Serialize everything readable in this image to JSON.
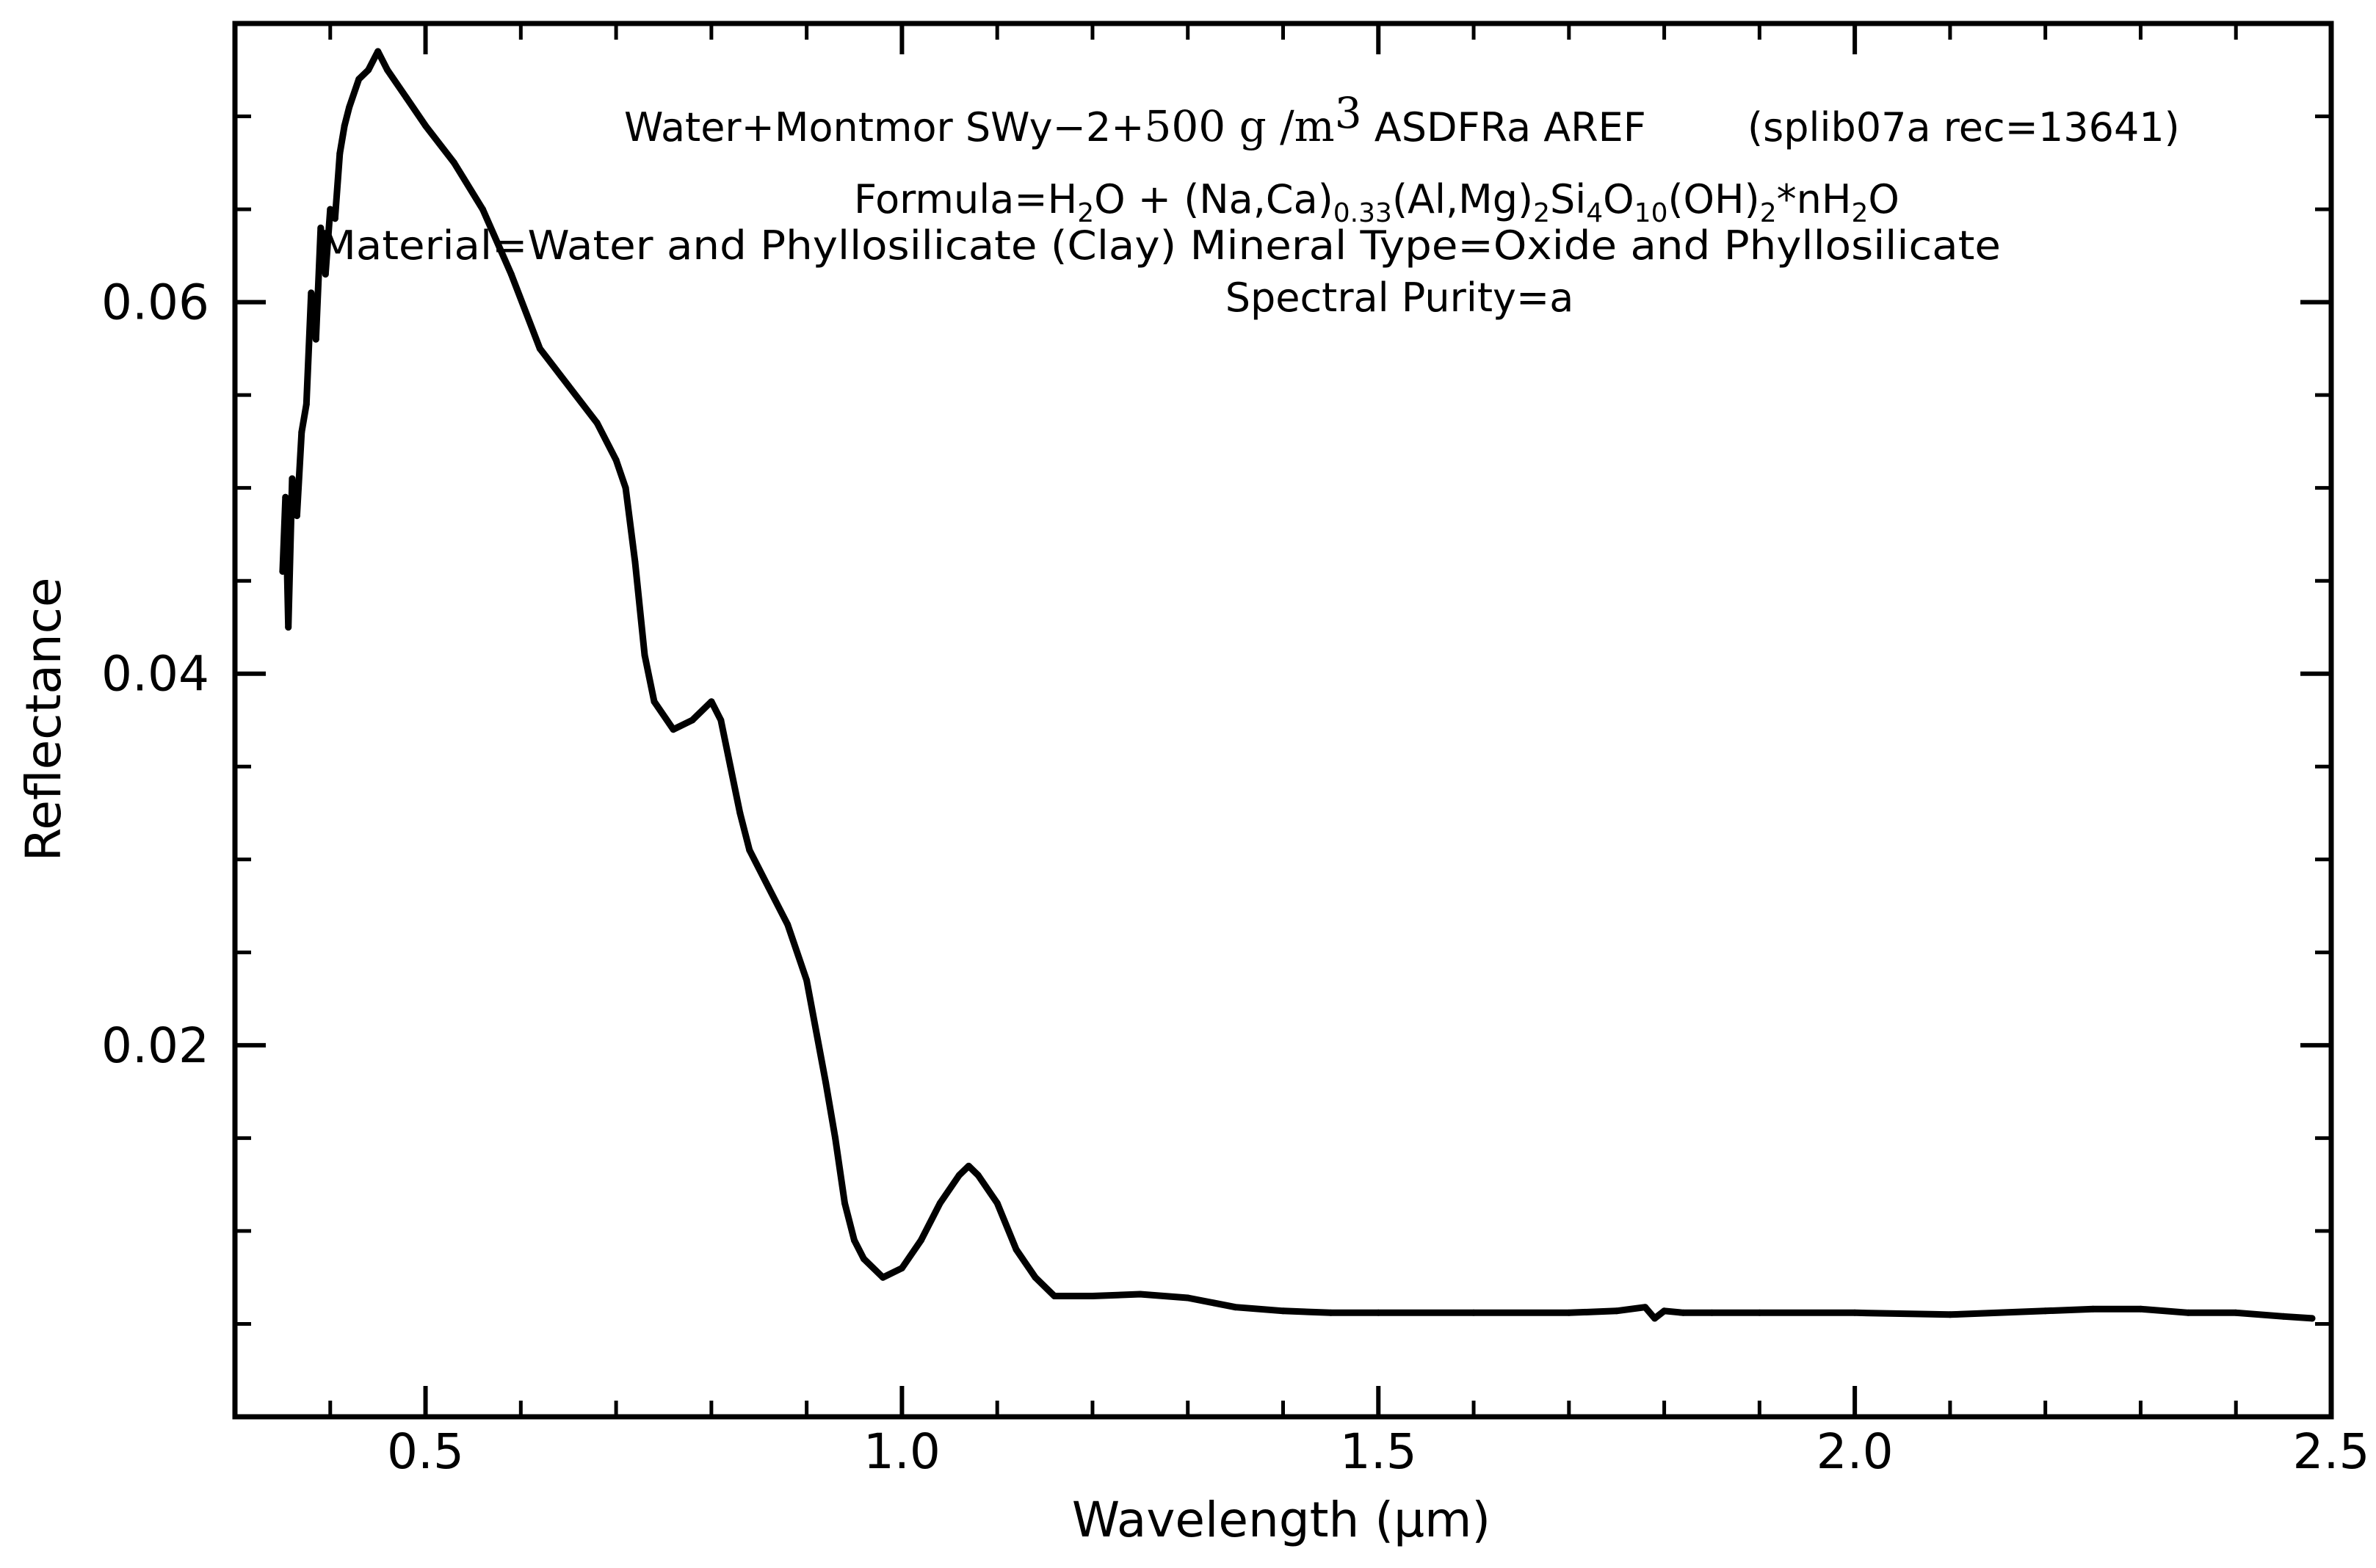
{
  "chart_data": {
    "type": "line",
    "title_lines": {
      "l1_a": "Water+Montmor SWy−2+",
      "l1_b": "500 g /m",
      "l1_c": "3",
      "l1_d": " ASDFRa AREF",
      "l1_e": "(splib07a rec=13641)",
      "l2_a": "Formula=H",
      "l2_b": "2",
      "l2_c": "O + (Na,Ca)",
      "l2_d": "0.33",
      "l2_e": "(Al,Mg)",
      "l2_f": "2",
      "l2_g": "Si",
      "l2_h": "4",
      "l2_i": "O",
      "l2_j": "10",
      "l2_k": "(OH)",
      "l2_l": "2",
      "l2_m": "*nH",
      "l2_n": "2",
      "l2_o": "O",
      "l3": "Material=Water and Phyllosilicate (Clay) Mineral  Type=Oxide and Phyllosilicate",
      "l4": "Spectral Purity=a"
    },
    "xlabel": "Wavelength (μm)",
    "ylabel": "Reflectance",
    "xlim": [
      0.3,
      2.5
    ],
    "ylim": [
      0.0,
      0.075
    ],
    "x_ticks": [
      {
        "value": 0.5,
        "label": "0.5"
      },
      {
        "value": 1.0,
        "label": "1.0"
      },
      {
        "value": 1.5,
        "label": "1.5"
      },
      {
        "value": 2.0,
        "label": "2.0"
      },
      {
        "value": 2.5,
        "label": "2.5"
      }
    ],
    "x_minor_step": 0.1,
    "y_ticks": [
      {
        "value": 0.02,
        "label": "0.02"
      },
      {
        "value": 0.04,
        "label": "0.04"
      },
      {
        "value": 0.06,
        "label": "0.06"
      }
    ],
    "y_minor_step": 0.005,
    "line_color": "#000000",
    "series": [
      {
        "name": "Water+Montmor SWy-2+500 g/m3",
        "x": [
          0.35,
          0.353,
          0.356,
          0.36,
          0.365,
          0.37,
          0.375,
          0.38,
          0.385,
          0.39,
          0.395,
          0.4,
          0.405,
          0.41,
          0.415,
          0.42,
          0.43,
          0.44,
          0.45,
          0.46,
          0.48,
          0.5,
          0.53,
          0.56,
          0.59,
          0.62,
          0.65,
          0.68,
          0.7,
          0.71,
          0.72,
          0.73,
          0.74,
          0.76,
          0.78,
          0.8,
          0.81,
          0.82,
          0.83,
          0.84,
          0.86,
          0.88,
          0.9,
          0.92,
          0.93,
          0.94,
          0.95,
          0.96,
          0.98,
          1.0,
          1.02,
          1.04,
          1.06,
          1.07,
          1.08,
          1.1,
          1.12,
          1.14,
          1.16,
          1.2,
          1.25,
          1.3,
          1.35,
          1.4,
          1.45,
          1.5,
          1.6,
          1.7,
          1.75,
          1.78,
          1.79,
          1.8,
          1.82,
          1.85,
          1.9,
          2.0,
          2.1,
          2.2,
          2.25,
          2.3,
          2.35,
          2.4,
          2.45,
          2.48
        ],
        "values": [
          0.0455,
          0.0495,
          0.0425,
          0.0505,
          0.0485,
          0.053,
          0.0545,
          0.0605,
          0.058,
          0.064,
          0.0615,
          0.065,
          0.0645,
          0.068,
          0.0695,
          0.0705,
          0.072,
          0.0725,
          0.0735,
          0.0725,
          0.071,
          0.0695,
          0.0675,
          0.065,
          0.0615,
          0.0575,
          0.0555,
          0.0535,
          0.0515,
          0.05,
          0.046,
          0.041,
          0.0385,
          0.037,
          0.0375,
          0.0385,
          0.0375,
          0.035,
          0.0325,
          0.0305,
          0.0285,
          0.0265,
          0.0235,
          0.018,
          0.015,
          0.0115,
          0.0095,
          0.0085,
          0.0075,
          0.008,
          0.0095,
          0.0115,
          0.013,
          0.0135,
          0.013,
          0.0115,
          0.009,
          0.0075,
          0.0065,
          0.0065,
          0.0066,
          0.0064,
          0.0059,
          0.0057,
          0.0056,
          0.0056,
          0.0056,
          0.0056,
          0.0057,
          0.0059,
          0.0053,
          0.0057,
          0.0056,
          0.0056,
          0.0056,
          0.0056,
          0.0055,
          0.0057,
          0.0058,
          0.0058,
          0.0056,
          0.0056,
          0.0054,
          0.0053
        ]
      }
    ]
  }
}
